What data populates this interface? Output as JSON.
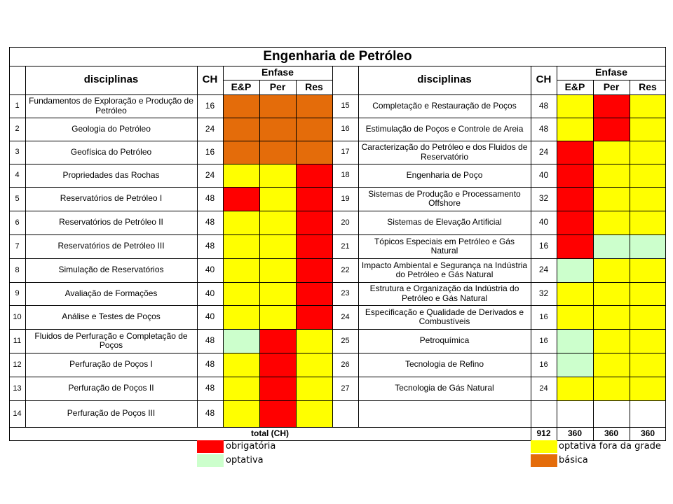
{
  "title": "Engenharia de Petróleo",
  "colors": {
    "obrigatoria": "#ff0000",
    "optativa": "#ccffcc",
    "fora_da_grade": "#ffff00",
    "basica": "#e46c0a"
  },
  "header": {
    "disciplinas": "disciplinas",
    "ch": "CH",
    "enfase": "Enfase",
    "ep": "E&P",
    "per": "Per",
    "res": "Res"
  },
  "left_rows": [
    {
      "n": "1",
      "name": "Fundamentos de Exploração e Produção de Petróleo",
      "ch": "16",
      "ep": "basica",
      "per": "basica",
      "res": "basica"
    },
    {
      "n": "2",
      "name": "Geologia do Petróleo",
      "ch": "24",
      "ep": "basica",
      "per": "basica",
      "res": "basica"
    },
    {
      "n": "3",
      "name": "Geofísica do Petróleo",
      "ch": "16",
      "ep": "basica",
      "per": "basica",
      "res": "basica"
    },
    {
      "n": "4",
      "name": "Propriedades das Rochas",
      "ch": "24",
      "ep": "fora_da_grade",
      "per": "fora_da_grade",
      "res": "obrigatoria"
    },
    {
      "n": "5",
      "name": "Reservatórios de Petróleo I",
      "ch": "48",
      "ep": "obrigatoria",
      "per": "fora_da_grade",
      "res": "obrigatoria"
    },
    {
      "n": "6",
      "name": "Reservatórios de Petróleo II",
      "ch": "48",
      "ep": "fora_da_grade",
      "per": "fora_da_grade",
      "res": "obrigatoria"
    },
    {
      "n": "7",
      "name": "Reservatórios de Petróleo III",
      "ch": "48",
      "ep": "fora_da_grade",
      "per": "fora_da_grade",
      "res": "obrigatoria"
    },
    {
      "n": "8",
      "name": "Simulação de Reservatórios",
      "ch": "40",
      "ep": "fora_da_grade",
      "per": "fora_da_grade",
      "res": "obrigatoria"
    },
    {
      "n": "9",
      "name": "Avaliação de Formações",
      "ch": "40",
      "ep": "fora_da_grade",
      "per": "fora_da_grade",
      "res": "obrigatoria"
    },
    {
      "n": "10",
      "name": "Análise e Testes de Poços",
      "ch": "40",
      "ep": "fora_da_grade",
      "per": "fora_da_grade",
      "res": "obrigatoria"
    },
    {
      "n": "11",
      "name": "Fluidos de Perfuração e Completação de Poços",
      "ch": "48",
      "ep": "optativa",
      "per": "obrigatoria",
      "res": "fora_da_grade"
    },
    {
      "n": "12",
      "name": "Perfuração de Poços I",
      "ch": "48",
      "ep": "fora_da_grade",
      "per": "obrigatoria",
      "res": "fora_da_grade"
    },
    {
      "n": "13",
      "name": "Perfuração de Poços II",
      "ch": "48",
      "ep": "fora_da_grade",
      "per": "obrigatoria",
      "res": "fora_da_grade"
    },
    {
      "n": "14",
      "name": "Perfuração de Poços III",
      "ch": "48",
      "ep": "fora_da_grade",
      "per": "obrigatoria",
      "res": "fora_da_grade"
    }
  ],
  "right_rows": [
    {
      "n": "15",
      "name": "Completação e Restauração de Poços",
      "ch": "48",
      "ep": "fora_da_grade",
      "per": "obrigatoria",
      "res": "fora_da_grade"
    },
    {
      "n": "16",
      "name": "Estimulação de Poços e Controle de Areia",
      "ch": "48",
      "ep": "fora_da_grade",
      "per": "obrigatoria",
      "res": "fora_da_grade"
    },
    {
      "n": "17",
      "name": "Caracterização do Petróleo e dos Fluidos de Reservatório",
      "ch": "24",
      "ep": "obrigatoria",
      "per": "fora_da_grade",
      "res": "fora_da_grade"
    },
    {
      "n": "18",
      "name": "Engenharia de Poço",
      "ch": "40",
      "ep": "obrigatoria",
      "per": "fora_da_grade",
      "res": "fora_da_grade"
    },
    {
      "n": "19",
      "name": "Sistemas de Produção e Processamento Offshore",
      "ch": "32",
      "ep": "obrigatoria",
      "per": "fora_da_grade",
      "res": "fora_da_grade"
    },
    {
      "n": "20",
      "name": "Sistemas de Elevação Artificial",
      "ch": "40",
      "ep": "obrigatoria",
      "per": "fora_da_grade",
      "res": "fora_da_grade"
    },
    {
      "n": "21",
      "name": "Tópicos Especiais em Petróleo e Gás Natural",
      "ch": "16",
      "ep": "obrigatoria",
      "per": "optativa",
      "res": "optativa"
    },
    {
      "n": "22",
      "name": "Impacto Ambiental e Segurança na Indústria do Petróleo e Gás Natural",
      "ch": "24",
      "ep": "optativa",
      "per": "fora_da_grade",
      "res": "fora_da_grade"
    },
    {
      "n": "23",
      "name": "Estrutura e Organização da Indústria do Petróleo e Gás Natural",
      "ch": "32",
      "ep": "fora_da_grade",
      "per": "fora_da_grade",
      "res": "fora_da_grade"
    },
    {
      "n": "24",
      "name": "Especificação e Qualidade de Derivados e Combustíveis",
      "ch": "16",
      "ep": "fora_da_grade",
      "per": "fora_da_grade",
      "res": "fora_da_grade"
    },
    {
      "n": "25",
      "name": "Petroquímica",
      "ch": "16",
      "ep": "optativa",
      "per": "fora_da_grade",
      "res": "fora_da_grade"
    },
    {
      "n": "26",
      "name": "Tecnologia de Refino",
      "ch": "16",
      "ep": "optativa",
      "per": "fora_da_grade",
      "res": "fora_da_grade"
    },
    {
      "n": "27",
      "name": "Tecnologia de Gás Natural",
      "ch": "24",
      "ep": "fora_da_grade",
      "per": "fora_da_grade",
      "res": "fora_da_grade"
    }
  ],
  "total": {
    "label": "total (CH)",
    "ch": "912",
    "ep": "360",
    "per": "360",
    "res": "360"
  },
  "legend": [
    {
      "key": "obrigatoria",
      "label": "obrigatória"
    },
    {
      "key": "optativa",
      "label": "optativa"
    },
    {
      "key": "fora_da_grade",
      "label": "optativa fora da grade"
    },
    {
      "key": "basica",
      "label": "básica"
    }
  ]
}
